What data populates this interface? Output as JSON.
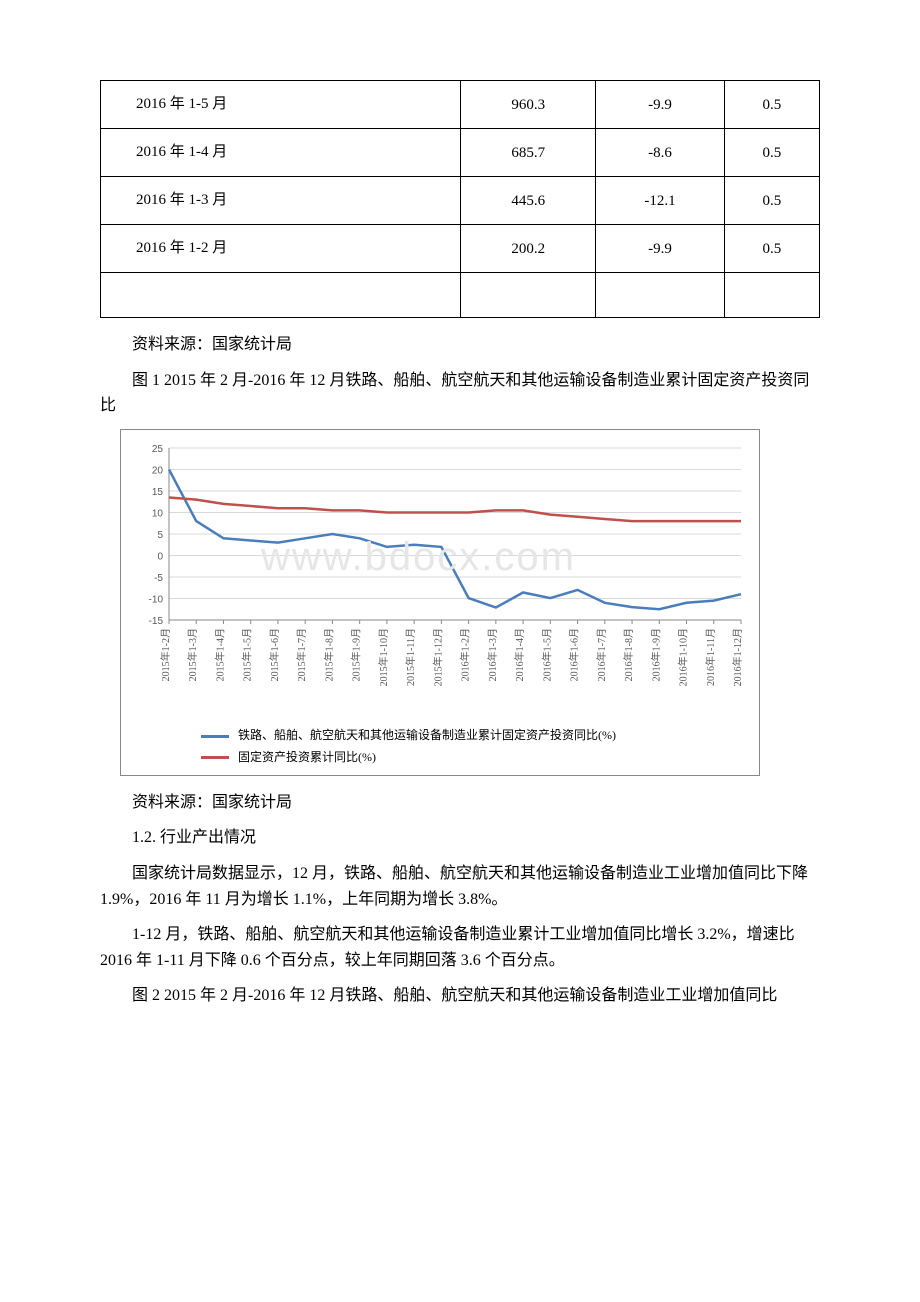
{
  "table": {
    "rows": [
      {
        "period": "2016 年 1-5 月",
        "val": "960.3",
        "yoy": "-9.9",
        "share": "0.5"
      },
      {
        "period": "2016 年 1-4 月",
        "val": "685.7",
        "yoy": "-8.6",
        "share": "0.5"
      },
      {
        "period": "2016 年 1-3 月",
        "val": "445.6",
        "yoy": "-12.1",
        "share": "0.5"
      },
      {
        "period": "2016 年 1-2 月",
        "val": "200.2",
        "yoy": "-9.9",
        "share": "0.5"
      }
    ]
  },
  "source_label": "资料来源：国家统计局",
  "fig1_caption": "图 1 2015 年 2 月-2016 年 12 月铁路、船舶、航空航天和其他运输设备制造业累计固定资产投资同比",
  "fig2_caption": "图 2 2015 年 2 月-2016 年 12 月铁路、船舶、航空航天和其他运输设备制造业工业增加值同比",
  "section_1_2": "1.2. 行业产出情况",
  "para_a": "国家统计局数据显示，12 月，铁路、船舶、航空航天和其他运输设备制造业工业增加值同比下降 1.9%，2016 年 11 月为增长 1.1%，上年同期为增长 3.8%。",
  "para_b": "1-12 月，铁路、船舶、航空航天和其他运输设备制造业累计工业增加值同比增长 3.2%，增速比 2016 年 1-11 月下降 0.6 个百分点，较上年同期回落 3.6 个百分点。",
  "chart1": {
    "type": "line",
    "background_color": "#ffffff",
    "grid_color": "#d9d9d9",
    "axis_color": "#888888",
    "tick_fontsize": 10,
    "tick_color": "#595959",
    "ylim": [
      -15,
      25
    ],
    "ytick_step": 5,
    "yticks": [
      -15,
      -10,
      -5,
      0,
      5,
      10,
      15,
      20,
      25
    ],
    "categories": [
      "2015年1-2月",
      "2015年1-3月",
      "2015年1-4月",
      "2015年1-5月",
      "2015年1-6月",
      "2015年1-7月",
      "2015年1-8月",
      "2015年1-9月",
      "2015年1-10月",
      "2015年1-11月",
      "2015年1-12月",
      "2016年1-2月",
      "2016年1-3月",
      "2016年1-4月",
      "2016年1-5月",
      "2016年1-6月",
      "2016年1-7月",
      "2016年1-8月",
      "2016年1-9月",
      "2016年1-10月",
      "2016年1-11月",
      "2016年1-12月"
    ],
    "series": [
      {
        "name": "铁路、船舶、航空航天和其他运输设备制造业累计固定资产投资同比(%)",
        "color": "#4a7ebb",
        "line_width": 2.5,
        "values": [
          20,
          8,
          4,
          3.5,
          3,
          4,
          5,
          4,
          2,
          2.5,
          2,
          -9.9,
          -12.1,
          -8.6,
          -9.9,
          -8,
          -11,
          -12,
          -12.5,
          -11,
          -10.5,
          -9
        ]
      },
      {
        "name": "固定资产投资累计同比(%)",
        "color": "#c0504d",
        "line_width": 2.5,
        "values": [
          13.5,
          13,
          12,
          11.5,
          11,
          11,
          10.5,
          10.5,
          10,
          10,
          10,
          10,
          10.5,
          10.5,
          9.5,
          9,
          8.5,
          8,
          8,
          8,
          8,
          8
        ]
      }
    ],
    "watermark": "www.bdocx.com"
  }
}
